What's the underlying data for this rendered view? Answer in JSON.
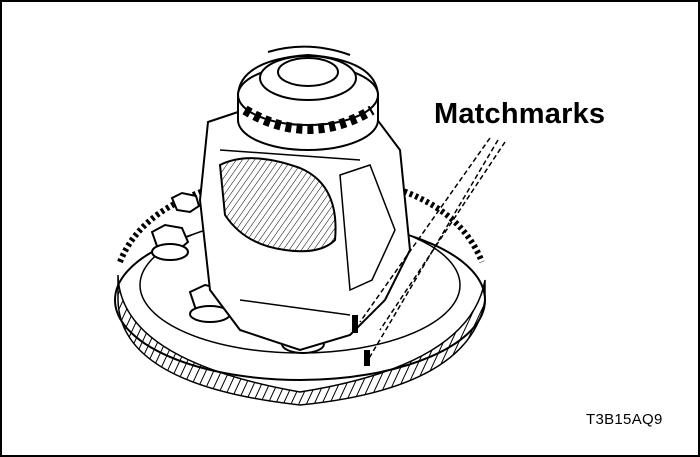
{
  "callout": {
    "label": "Matchmarks"
  },
  "figure_code": "T3B15AQ9",
  "icons": {
    "main": "differential-assembly-drawing"
  }
}
